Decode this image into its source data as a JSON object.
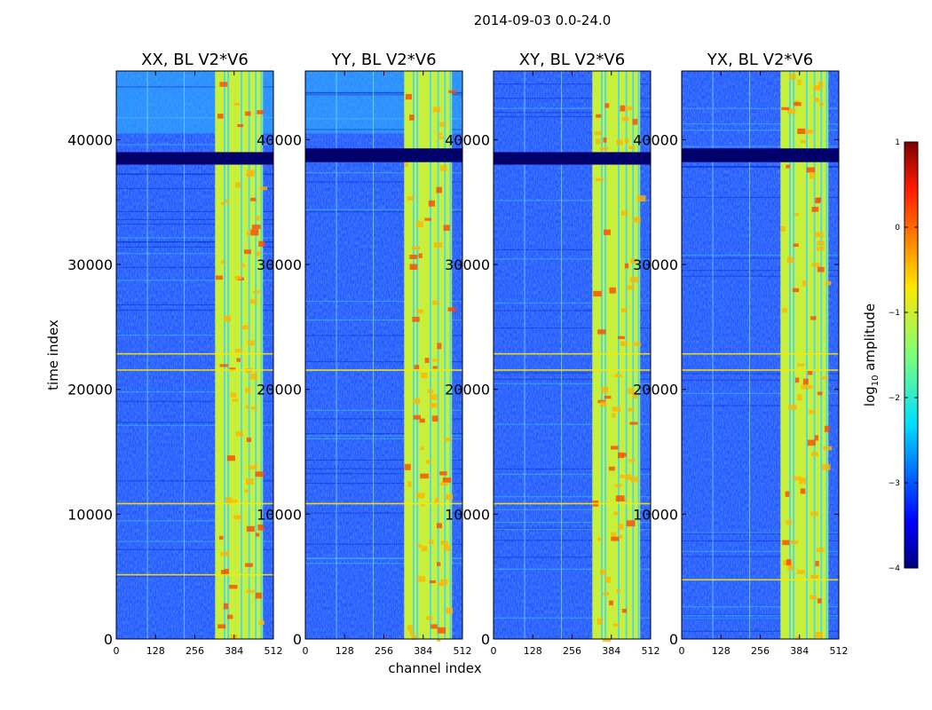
{
  "figure": {
    "suptitle": "2014-09-03 0.0-24.0"
  },
  "chart_data": {
    "type": "heatmap",
    "xlabel": "channel index",
    "ylabel": "time index",
    "xlim": [
      0,
      512
    ],
    "ylim": [
      0,
      45500
    ],
    "xticks": [
      0,
      128,
      256,
      384,
      512
    ],
    "yticks": [
      0,
      10000,
      20000,
      30000,
      40000
    ],
    "panels": [
      {
        "title": "XX, BL V2*V6",
        "flag_band": [
          38000,
          39000
        ],
        "bright_rows": [
          5200,
          10900,
          21600,
          22900
        ]
      },
      {
        "title": "YY, BL V2*V6",
        "flag_band": [
          38200,
          39300
        ],
        "bright_rows": [
          10900,
          21600
        ]
      },
      {
        "title": "XY, BL V2*V6",
        "flag_band": [
          38000,
          39000
        ],
        "bright_rows": [
          10900,
          21600,
          22900
        ]
      },
      {
        "title": "YX, BL V2*V6",
        "flag_band": [
          38200,
          39300
        ],
        "bright_rows": [
          4800,
          21600,
          22900
        ]
      }
    ],
    "rfi_band_channels": [
      322,
      478
    ],
    "colorbar": {
      "label": "log10 amplitude",
      "range": [
        -4,
        1
      ],
      "ticks": [
        "1",
        "0",
        "−1",
        "−2",
        "−3",
        "−4"
      ],
      "colormap": "jet"
    }
  }
}
